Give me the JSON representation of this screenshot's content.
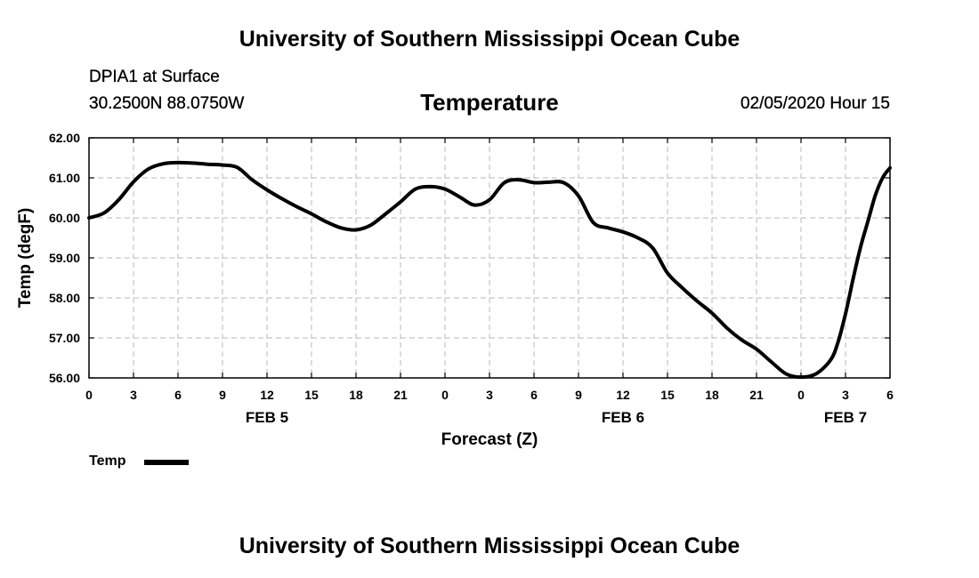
{
  "header": {
    "title": "University of Southern Mississippi Ocean Cube",
    "station": "DPIA1 at Surface",
    "coords": "30.2500N 88.0750W",
    "variable": "Temperature",
    "datetime": "02/05/2020 Hour 15"
  },
  "footer": {
    "title": "University of Southern Mississippi Ocean Cube"
  },
  "chart_data": {
    "type": "line",
    "title": "Temperature",
    "xlabel": "Forecast (Z)",
    "ylabel": "Temp (degF)",
    "xlim": [
      0,
      54
    ],
    "ylim": [
      56,
      62
    ],
    "grid": true,
    "x_ticks": [
      {
        "x": 0,
        "label": "0"
      },
      {
        "x": 3,
        "label": "3"
      },
      {
        "x": 6,
        "label": "6"
      },
      {
        "x": 9,
        "label": "9"
      },
      {
        "x": 12,
        "label": "12"
      },
      {
        "x": 15,
        "label": "15"
      },
      {
        "x": 18,
        "label": "18"
      },
      {
        "x": 21,
        "label": "21"
      },
      {
        "x": 24,
        "label": "0"
      },
      {
        "x": 27,
        "label": "3"
      },
      {
        "x": 30,
        "label": "6"
      },
      {
        "x": 33,
        "label": "9"
      },
      {
        "x": 36,
        "label": "12"
      },
      {
        "x": 39,
        "label": "15"
      },
      {
        "x": 42,
        "label": "18"
      },
      {
        "x": 45,
        "label": "21"
      },
      {
        "x": 48,
        "label": "0"
      },
      {
        "x": 51,
        "label": "3"
      },
      {
        "x": 54,
        "label": "6"
      }
    ],
    "y_ticks": [
      {
        "y": 56,
        "label": "56.00"
      },
      {
        "y": 57,
        "label": "57.00"
      },
      {
        "y": 58,
        "label": "58.00"
      },
      {
        "y": 59,
        "label": "59.00"
      },
      {
        "y": 60,
        "label": "60.00"
      },
      {
        "y": 61,
        "label": "61.00"
      },
      {
        "y": 62,
        "label": "62.00"
      }
    ],
    "date_labels": [
      {
        "x": 12,
        "label": "FEB 5"
      },
      {
        "x": 36,
        "label": "FEB 6"
      },
      {
        "x": 51,
        "label": "FEB 7"
      }
    ],
    "series": [
      {
        "name": "Temp",
        "color": "#000000",
        "points": [
          [
            0,
            60.0
          ],
          [
            1,
            60.12
          ],
          [
            2,
            60.45
          ],
          [
            3,
            60.9
          ],
          [
            4,
            61.22
          ],
          [
            5,
            61.35
          ],
          [
            6,
            61.38
          ],
          [
            7,
            61.37
          ],
          [
            8,
            61.34
          ],
          [
            9,
            61.32
          ],
          [
            10,
            61.26
          ],
          [
            11,
            60.95
          ],
          [
            12,
            60.7
          ],
          [
            13,
            60.48
          ],
          [
            14,
            60.28
          ],
          [
            15,
            60.1
          ],
          [
            16,
            59.9
          ],
          [
            17,
            59.75
          ],
          [
            18,
            59.7
          ],
          [
            19,
            59.82
          ],
          [
            20,
            60.1
          ],
          [
            21,
            60.4
          ],
          [
            22,
            60.72
          ],
          [
            23,
            60.78
          ],
          [
            24,
            60.72
          ],
          [
            25,
            60.52
          ],
          [
            26,
            60.32
          ],
          [
            27,
            60.45
          ],
          [
            28,
            60.88
          ],
          [
            29,
            60.95
          ],
          [
            30,
            60.88
          ],
          [
            31,
            60.89
          ],
          [
            32,
            60.88
          ],
          [
            33,
            60.55
          ],
          [
            34,
            59.88
          ],
          [
            35,
            59.75
          ],
          [
            36,
            59.65
          ],
          [
            37,
            59.5
          ],
          [
            38,
            59.25
          ],
          [
            39,
            58.62
          ],
          [
            40,
            58.25
          ],
          [
            41,
            57.92
          ],
          [
            42,
            57.62
          ],
          [
            43,
            57.25
          ],
          [
            44,
            56.95
          ],
          [
            45,
            56.72
          ],
          [
            46,
            56.4
          ],
          [
            47,
            56.1
          ],
          [
            48,
            56.02
          ],
          [
            49,
            56.1
          ],
          [
            50,
            56.45
          ],
          [
            50.5,
            56.9
          ],
          [
            51,
            57.6
          ],
          [
            51.5,
            58.45
          ],
          [
            52,
            59.25
          ],
          [
            52.5,
            59.9
          ],
          [
            53,
            60.55
          ],
          [
            53.5,
            61.0
          ],
          [
            54,
            61.25
          ]
        ]
      }
    ],
    "legend": {
      "label": "Temp",
      "placement": "bottom-left"
    }
  }
}
